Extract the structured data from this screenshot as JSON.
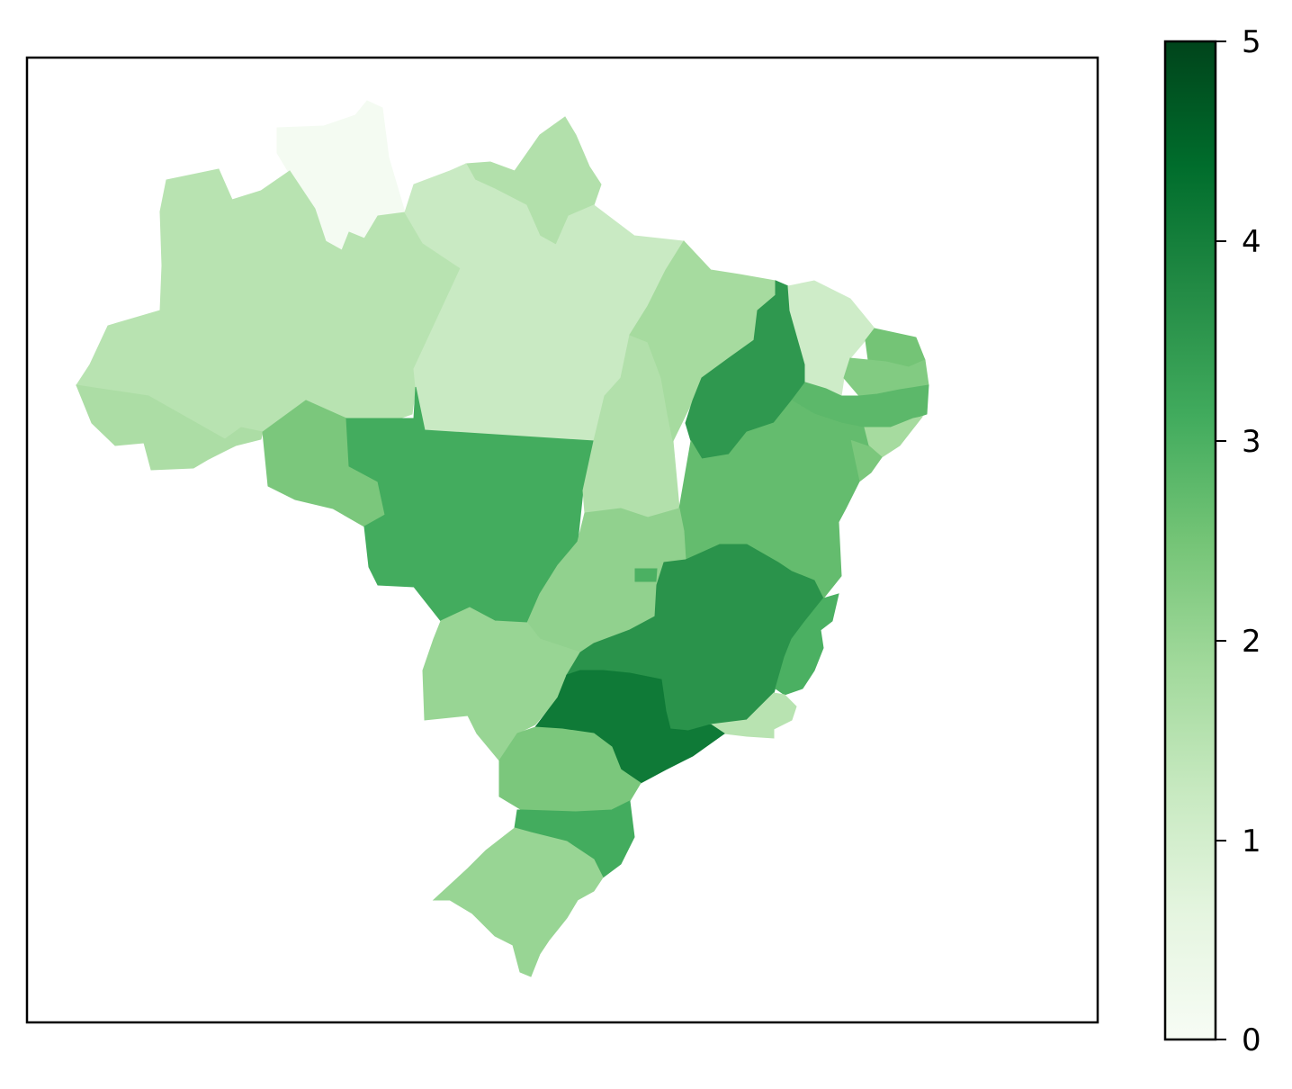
{
  "chart_data": {
    "type": "choropleth",
    "title": "",
    "colormap": "Greens",
    "color_scale": {
      "min": 0,
      "max": 5,
      "ticks": [
        "0",
        "1",
        "2",
        "3",
        "4",
        "5"
      ]
    },
    "regions": [
      {
        "id": "RR",
        "value": 0.1
      },
      {
        "id": "AP",
        "value": 1.6
      },
      {
        "id": "AM",
        "value": 1.5
      },
      {
        "id": "PA",
        "value": 1.2
      },
      {
        "id": "AC",
        "value": 1.7
      },
      {
        "id": "RO",
        "value": 2.4
      },
      {
        "id": "MT",
        "value": 3.1
      },
      {
        "id": "TO",
        "value": 1.6
      },
      {
        "id": "MA",
        "value": 1.8
      },
      {
        "id": "PI",
        "value": 3.5
      },
      {
        "id": "CE",
        "value": 1.1
      },
      {
        "id": "RN",
        "value": 2.5
      },
      {
        "id": "PB",
        "value": 2.3
      },
      {
        "id": "PE",
        "value": 2.8
      },
      {
        "id": "AL",
        "value": 1.8
      },
      {
        "id": "SE",
        "value": 2.4
      },
      {
        "id": "BA",
        "value": 2.7
      },
      {
        "id": "GO",
        "value": 2.1
      },
      {
        "id": "DF",
        "value": 3.0
      },
      {
        "id": "MS",
        "value": 2.0
      },
      {
        "id": "MG",
        "value": 3.6
      },
      {
        "id": "ES",
        "value": 3.0
      },
      {
        "id": "RJ",
        "value": 1.5
      },
      {
        "id": "SP",
        "value": 4.1
      },
      {
        "id": "PR",
        "value": 2.4
      },
      {
        "id": "SC",
        "value": 3.1
      },
      {
        "id": "RS",
        "value": 2.0
      }
    ]
  }
}
